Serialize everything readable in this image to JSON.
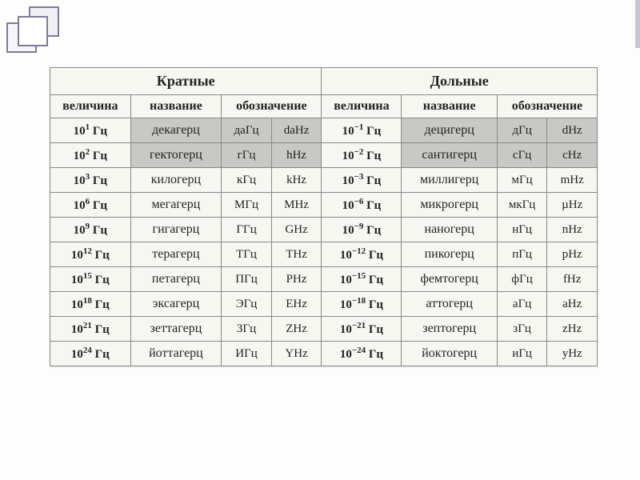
{
  "headers": {
    "left_group": "Кратные",
    "right_group": "Дольные",
    "magnitude": "величина",
    "name": "название",
    "designation": "обозначение"
  },
  "rows": [
    {
      "l_exp": "1",
      "l_name": "декагерц",
      "l_ab1": "даГц",
      "l_ab2": "daHz",
      "r_exp": "−1",
      "r_name": "децигерц",
      "r_ab1": "дГц",
      "r_ab2": "dHz",
      "shade": true
    },
    {
      "l_exp": "2",
      "l_name": "гектогерц",
      "l_ab1": "гГц",
      "l_ab2": "hHz",
      "r_exp": "−2",
      "r_name": "сантигерц",
      "r_ab1": "сГц",
      "r_ab2": "cHz",
      "shade": true
    },
    {
      "l_exp": "3",
      "l_name": "килогерц",
      "l_ab1": "кГц",
      "l_ab2": "kHz",
      "r_exp": "−3",
      "r_name": "миллигерц",
      "r_ab1": "мГц",
      "r_ab2": "mHz",
      "shade": false
    },
    {
      "l_exp": "6",
      "l_name": "мегагерц",
      "l_ab1": "МГц",
      "l_ab2": "MHz",
      "r_exp": "−6",
      "r_name": "микрогерц",
      "r_ab1": "мкГц",
      "r_ab2": "µHz",
      "shade": false
    },
    {
      "l_exp": "9",
      "l_name": "гигагерц",
      "l_ab1": "ГГц",
      "l_ab2": "GHz",
      "r_exp": "−9",
      "r_name": "наногерц",
      "r_ab1": "нГц",
      "r_ab2": "nHz",
      "shade": false
    },
    {
      "l_exp": "12",
      "l_name": "терагерц",
      "l_ab1": "ТГц",
      "l_ab2": "THz",
      "r_exp": "−12",
      "r_name": "пикогерц",
      "r_ab1": "пГц",
      "r_ab2": "pHz",
      "shade": false
    },
    {
      "l_exp": "15",
      "l_name": "петагерц",
      "l_ab1": "ПГц",
      "l_ab2": "PHz",
      "r_exp": "−15",
      "r_name": "фемтогерц",
      "r_ab1": "фГц",
      "r_ab2": "fHz",
      "shade": false
    },
    {
      "l_exp": "18",
      "l_name": "эксагерц",
      "l_ab1": "ЭГц",
      "l_ab2": "EHz",
      "r_exp": "−18",
      "r_name": "аттогерц",
      "r_ab1": "аГц",
      "r_ab2": "aHz",
      "shade": false
    },
    {
      "l_exp": "21",
      "l_name": "зеттагерц",
      "l_ab1": "ЗГц",
      "l_ab2": "ZHz",
      "r_exp": "−21",
      "r_name": "зептогерц",
      "r_ab1": "зГц",
      "r_ab2": "zHz",
      "shade": false
    },
    {
      "l_exp": "24",
      "l_name": "йоттагерц",
      "l_ab1": "ИГц",
      "l_ab2": "YHz",
      "r_exp": "−24",
      "r_name": "йоктогерц",
      "r_ab1": "иГц",
      "r_ab2": "yHz",
      "shade": false
    }
  ],
  "unit_label": "Гц"
}
